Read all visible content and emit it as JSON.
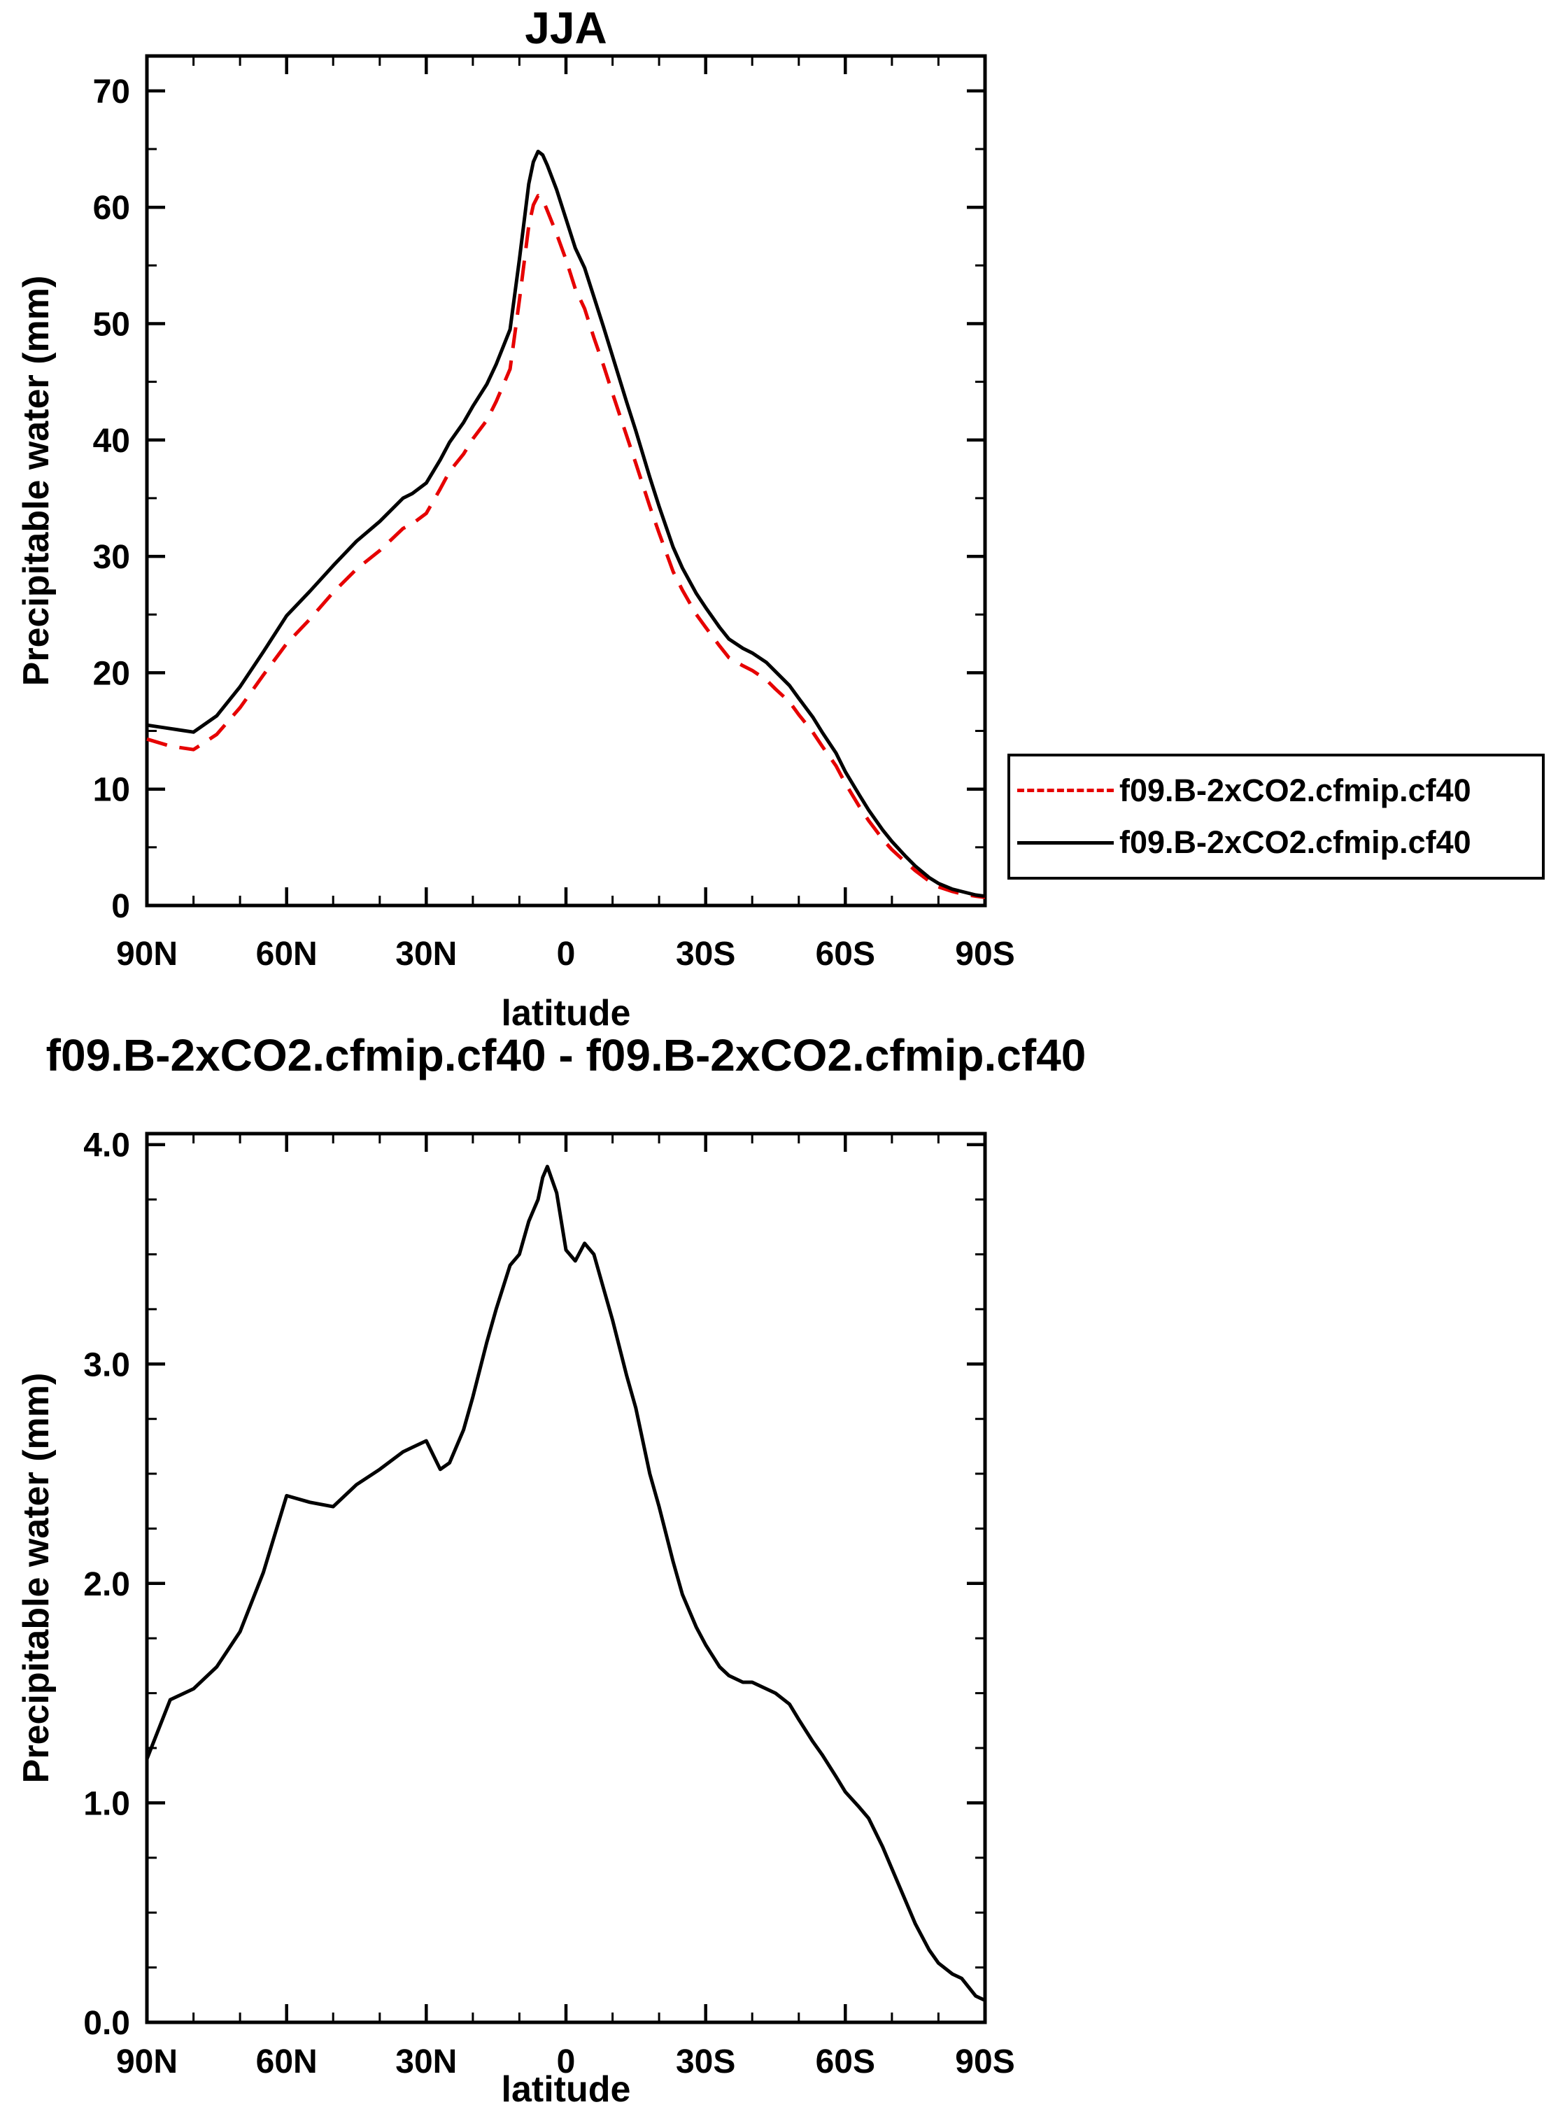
{
  "page": {
    "background": "#ffffff"
  },
  "chart_data": [
    {
      "id": "top-chart",
      "type": "line",
      "title": "JJA",
      "xlabel": "latitude",
      "ylabel": "Precipitable water (mm)",
      "xlim": [
        90,
        -90
      ],
      "ylim": [
        0,
        70
      ],
      "grid": false,
      "legend_position": "right",
      "xticks": {
        "values": [
          90,
          60,
          30,
          0,
          -30,
          -60,
          -90
        ],
        "labels": [
          "90N",
          "60N",
          "30N",
          "0",
          "30S",
          "60S",
          "90S"
        ],
        "minor_step": 10
      },
      "yticks": {
        "values": [
          0,
          10,
          20,
          30,
          40,
          50,
          60,
          70
        ],
        "labels": [
          "0",
          "10",
          "20",
          "30",
          "40",
          "50",
          "60",
          "70"
        ],
        "minor_step": 5
      },
      "x": [
        90,
        85,
        80,
        75,
        70,
        65,
        60,
        55,
        50,
        45,
        40,
        35,
        33,
        30,
        27,
        25,
        22,
        20,
        17,
        15,
        12,
        10,
        8,
        7,
        6,
        5,
        4,
        2,
        0,
        -2,
        -4,
        -6,
        -8,
        -10,
        -13,
        -15,
        -18,
        -20,
        -23,
        -25,
        -28,
        -30,
        -33,
        -35,
        -38,
        -40,
        -43,
        -45,
        -48,
        -50,
        -53,
        -55,
        -58,
        -60,
        -63,
        -65,
        -68,
        -70,
        -73,
        -75,
        -78,
        -80,
        -83,
        -85,
        -88,
        -90
      ],
      "series": [
        {
          "name": "f09.B-2xCO2.cfmip.cf40",
          "color": "#e60000",
          "style": "dashed",
          "values": [
            14.3,
            13.7,
            13.4,
            14.7,
            17.0,
            19.8,
            22.5,
            24.6,
            26.9,
            28.9,
            30.5,
            32.4,
            32.8,
            33.7,
            35.8,
            37.3,
            38.8,
            40.1,
            41.7,
            43.3,
            46.1,
            52.0,
            58.4,
            60.2,
            61.0,
            60.7,
            59.7,
            57.7,
            55.5,
            53.0,
            51.3,
            48.8,
            46.5,
            44.0,
            40.4,
            38.0,
            34.3,
            32.0,
            28.7,
            27.1,
            25.0,
            23.9,
            22.3,
            21.3,
            20.6,
            20.2,
            19.4,
            18.6,
            17.5,
            16.4,
            14.9,
            13.7,
            12.0,
            10.5,
            8.5,
            7.3,
            5.7,
            4.8,
            3.7,
            3.0,
            2.1,
            1.6,
            1.2,
            1.0,
            0.8,
            0.7
          ]
        },
        {
          "name": "f09.B-2xCO2.cfmip.cf40",
          "color": "#000000",
          "style": "solid",
          "values": [
            15.5,
            15.2,
            14.9,
            16.3,
            18.8,
            21.8,
            24.9,
            27.0,
            29.2,
            31.3,
            33.0,
            35.0,
            35.4,
            36.3,
            38.3,
            39.8,
            41.5,
            42.9,
            44.8,
            46.5,
            49.5,
            55.5,
            62.0,
            63.9,
            64.8,
            64.5,
            63.6,
            61.5,
            59.0,
            56.5,
            54.8,
            52.3,
            49.8,
            47.2,
            43.3,
            40.8,
            36.8,
            34.3,
            30.8,
            29.0,
            26.8,
            25.6,
            23.9,
            22.9,
            22.1,
            21.7,
            20.9,
            20.1,
            18.9,
            17.8,
            16.2,
            14.9,
            13.1,
            11.5,
            9.5,
            8.2,
            6.5,
            5.5,
            4.2,
            3.4,
            2.4,
            1.9,
            1.4,
            1.2,
            0.9,
            0.8
          ]
        }
      ]
    },
    {
      "id": "bottom-chart",
      "type": "line",
      "title": "f09.B-2xCO2.cfmip.cf40 - f09.B-2xCO2.cfmip.cf40",
      "xlabel": "latitude",
      "ylabel": "Precipitable water (mm)",
      "xlim": [
        90,
        -90
      ],
      "ylim": [
        0,
        4.0
      ],
      "grid": false,
      "xticks": {
        "values": [
          90,
          60,
          30,
          0,
          -30,
          -60,
          -90
        ],
        "labels": [
          "90N",
          "60N",
          "30N",
          "0",
          "30S",
          "60S",
          "90S"
        ],
        "minor_step": 10
      },
      "yticks": {
        "values": [
          0,
          1,
          2,
          3,
          4
        ],
        "labels": [
          "0.0",
          "1.0",
          "2.0",
          "3.0",
          "4.0"
        ],
        "minor_step": 0.25
      },
      "x": [
        90,
        85,
        80,
        75,
        70,
        65,
        60,
        55,
        50,
        45,
        40,
        35,
        33,
        30,
        27,
        25,
        22,
        20,
        17,
        15,
        12,
        10,
        8,
        7,
        6,
        5,
        4,
        2,
        0,
        -2,
        -4,
        -6,
        -8,
        -10,
        -13,
        -15,
        -18,
        -20,
        -23,
        -25,
        -28,
        -30,
        -33,
        -35,
        -38,
        -40,
        -43,
        -45,
        -48,
        -50,
        -53,
        -55,
        -58,
        -60,
        -63,
        -65,
        -68,
        -70,
        -73,
        -75,
        -78,
        -80,
        -83,
        -85,
        -88,
        -90
      ],
      "series": [
        {
          "name": "f09.B-2xCO2.cfmip.cf40 - f09.B-2xCO2.cfmip.cf40",
          "color": "#000000",
          "style": "solid",
          "values": [
            1.2,
            1.47,
            1.52,
            1.62,
            1.78,
            2.05,
            2.4,
            2.37,
            2.35,
            2.45,
            2.52,
            2.6,
            2.62,
            2.65,
            2.52,
            2.55,
            2.7,
            2.85,
            3.1,
            3.25,
            3.45,
            3.5,
            3.65,
            3.7,
            3.75,
            3.85,
            3.9,
            3.78,
            3.52,
            3.47,
            3.55,
            3.5,
            3.35,
            3.2,
            2.95,
            2.8,
            2.5,
            2.35,
            2.1,
            1.95,
            1.8,
            1.72,
            1.62,
            1.58,
            1.55,
            1.55,
            1.52,
            1.5,
            1.45,
            1.38,
            1.28,
            1.22,
            1.12,
            1.05,
            0.98,
            0.93,
            0.8,
            0.7,
            0.55,
            0.45,
            0.33,
            0.27,
            0.22,
            0.2,
            0.12,
            0.1
          ]
        }
      ]
    }
  ]
}
